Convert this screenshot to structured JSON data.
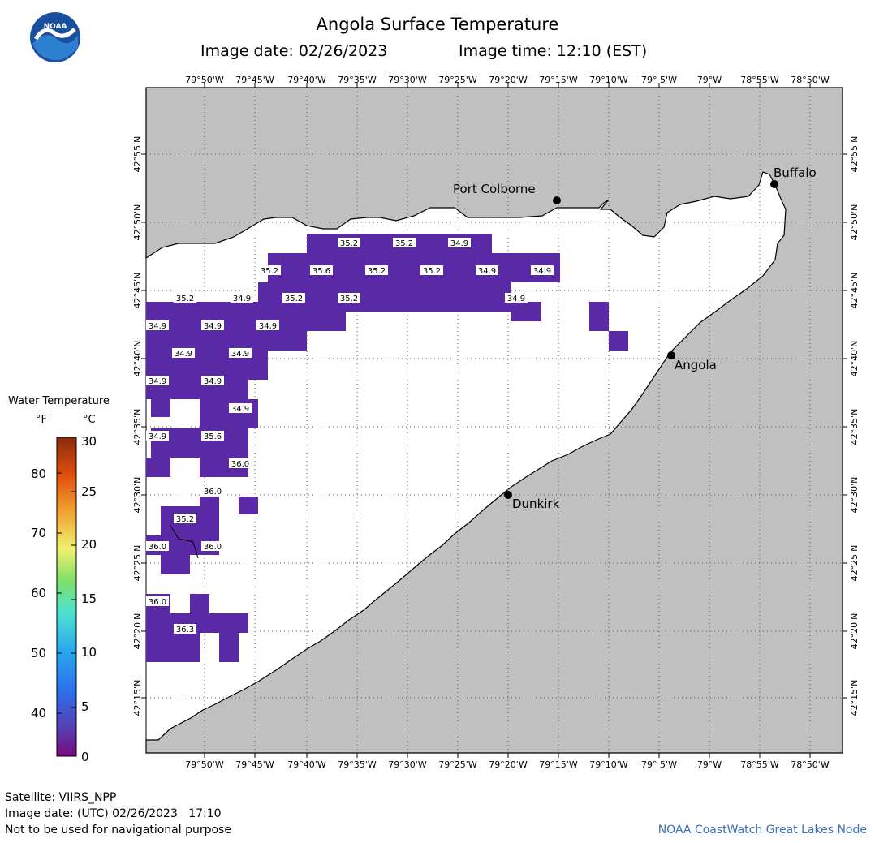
{
  "header": {
    "title": "Angola Surface Temperature",
    "image_date": "Image date: 02/26/2023",
    "image_time": "Image time: 12:10 (EST)"
  },
  "logo": {
    "text": "NOAA",
    "icon": "noaa-logo"
  },
  "map": {
    "lon_labels": [
      "79°50'W",
      "79°45'W",
      "79°40'W",
      "79°35'W",
      "79°30'W",
      "79°25'W",
      "79°20'W",
      "79°15'W",
      "79°10'W",
      "79° 5'W",
      "79°W",
      "78°55'W",
      "78°50'W"
    ],
    "lat_labels": [
      "42°55'N",
      "42°50'N",
      "42°45'N",
      "42°40'N",
      "42°35'N",
      "42°30'N",
      "42°25'N",
      "42°20'N",
      "42°15'N"
    ],
    "cities": [
      {
        "name": "Port Colborne"
      },
      {
        "name": "Buffalo"
      },
      {
        "name": "Angola"
      },
      {
        "name": "Dunkirk"
      }
    ],
    "temperature_labels": [
      "35.2",
      "35.2",
      "34.9",
      "35.2",
      "35.6",
      "35.2",
      "35.2",
      "34.9",
      "34.9",
      "35.2",
      "35.2",
      "34.9",
      "35.2",
      "34.9",
      "34.9",
      "34.9",
      "34.9",
      "34.9",
      "34.9",
      "34.9",
      "34.9",
      "34.9",
      "34.9",
      "35.6",
      "36.0",
      "36.0",
      "35.2",
      "36.0",
      "36.0",
      "36.0",
      "36.3"
    ],
    "colors": {
      "land": "#c0c0c0",
      "water_no_data": "#ffffff",
      "water_cold": "#5a2aa6"
    }
  },
  "legend": {
    "title": "Water Temperature",
    "unit_f": "°F",
    "unit_c": "°C",
    "f_ticks": [
      "80",
      "70",
      "60",
      "50",
      "40"
    ],
    "c_ticks": [
      "30",
      "25",
      "20",
      "15",
      "10",
      "5",
      "0"
    ]
  },
  "footer": {
    "satellite": "Satellite: VIIRS_NPP",
    "utc_date": "Image date: (UTC) 02/26/2023   17:10",
    "disclaimer": "Not to be used for navigational purpose",
    "credit": "NOAA CoastWatch Great Lakes Node"
  }
}
